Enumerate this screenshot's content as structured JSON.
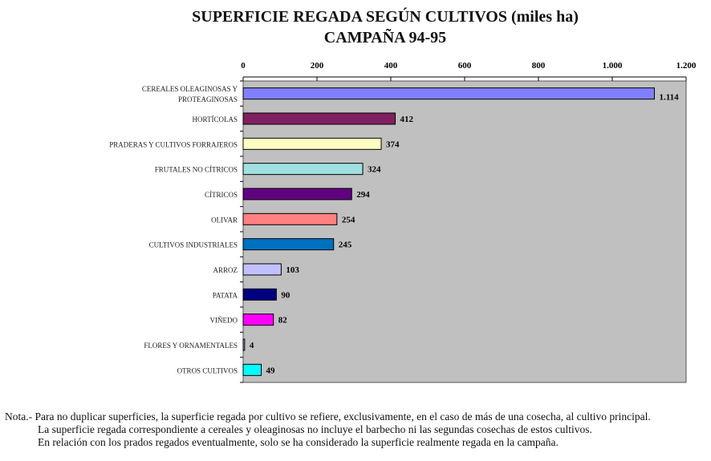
{
  "chart_data": {
    "type": "bar",
    "orientation": "horizontal",
    "title": "SUPERFICIE REGADA SEGÚN CULTIVOS (miles ha)",
    "subtitle": "CAMPAÑA 94-95",
    "categories": [
      "CEREALES OLEAGINOSAS Y PROTEAGINOSAS",
      "HORTÍCOLAS",
      "PRADERAS Y CULTIVOS FORRAJEROS",
      "FRUTALES NO CÍTRICOS",
      "CÍTRICOS",
      "OLIVAR",
      "CULTIVOS INDUSTRIALES",
      "ARROZ",
      "PATATA",
      "VIÑEDO",
      "FLORES Y ORNAMENTALES",
      "OTROS CULTIVOS"
    ],
    "category_lines": [
      [
        "CEREALES OLEAGINOSAS Y",
        "PROTEAGINOSAS"
      ],
      [
        "HORTÍCOLAS"
      ],
      [
        "PRADERAS Y CULTIVOS FORRAJEROS"
      ],
      [
        "FRUTALES NO CÍTRICOS"
      ],
      [
        "CÍTRICOS"
      ],
      [
        "OLIVAR"
      ],
      [
        "CULTIVOS INDUSTRIALES"
      ],
      [
        "ARROZ"
      ],
      [
        "PATATA"
      ],
      [
        "VIÑEDO"
      ],
      [
        "FLORES Y ORNAMENTALES"
      ],
      [
        "OTROS CULTIVOS"
      ]
    ],
    "values": [
      1114,
      412,
      374,
      324,
      294,
      254,
      245,
      103,
      90,
      82,
      4,
      49
    ],
    "value_labels": [
      "1.114",
      "412",
      "374",
      "324",
      "294",
      "254",
      "245",
      "103",
      "90",
      "82",
      "4",
      "49"
    ],
    "colors": [
      "#8080ff",
      "#802060",
      "#ffffc0",
      "#a0e0e0",
      "#600080",
      "#ff8080",
      "#0070c0",
      "#c0c0ff",
      "#000080",
      "#ff00ff",
      "#a0a0ff",
      "#00ffff"
    ],
    "xlim": [
      0,
      1200
    ],
    "xticks": [
      0,
      200,
      400,
      600,
      800,
      1000,
      1200
    ],
    "xtick_labels": [
      "0",
      "200",
      "400",
      "600",
      "800",
      "1.000",
      "1.200"
    ],
    "axis_position": "top",
    "plot_background": "#c0c0c0",
    "grid": false,
    "legend": "none"
  },
  "note": {
    "lines": [
      "Nota.- Para no duplicar superficies, la superficie regada por cultivo se refiere, exclusivamente, en el caso de más de una cosecha, al cultivo principal.",
      "La superficie regada correspondiente a cereales y oleaginosas no incluye el barbecho ni las segundas cosechas de estos cultivos.",
      "En relación con los prados regados eventualmente, solo se ha considerado la superficie realmente regada en la campaña."
    ]
  }
}
